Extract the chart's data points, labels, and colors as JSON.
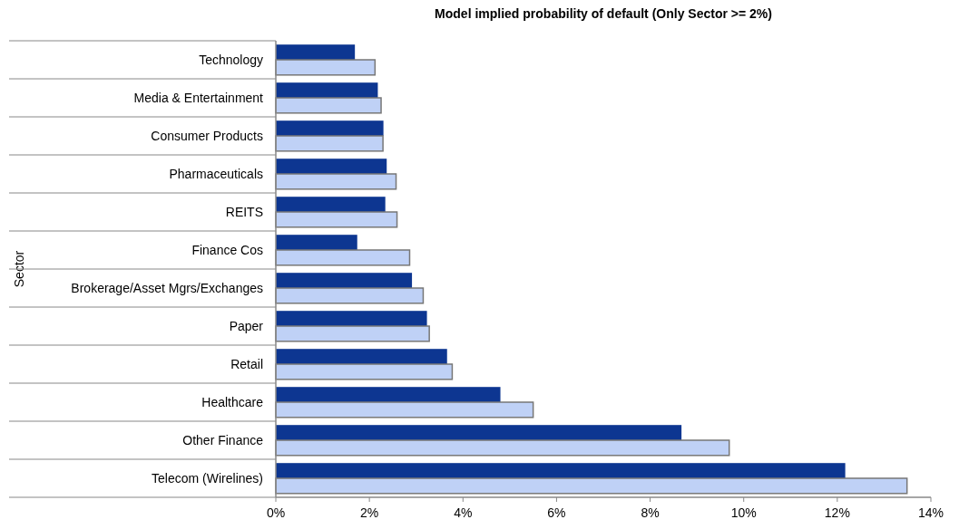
{
  "chart_data": {
    "type": "bar",
    "orientation": "horizontal",
    "title": "Model implied probability of default (Only Sector >= 2%)",
    "ylabel": "Sector",
    "categories": [
      "Technology",
      "Media & Entertainment",
      "Consumer Products",
      "Pharmaceuticals",
      "REITS",
      "Finance Cos",
      "Brokerage/Asset Mgrs/Exchanges",
      "Paper",
      "Retail",
      "Healthcare",
      "Other Finance",
      "Telecom (Wirelines)"
    ],
    "series": [
      {
        "color": "#0d3691",
        "values": [
          1.69,
          2.18,
          2.3,
          2.37,
          2.34,
          1.74,
          2.91,
          3.23,
          3.66,
          4.8,
          8.67,
          12.17
        ]
      },
      {
        "color": "#bfd1f6",
        "values": [
          2.12,
          2.25,
          2.29,
          2.57,
          2.59,
          2.86,
          3.15,
          3.28,
          3.77,
          5.5,
          9.69,
          13.49
        ]
      }
    ],
    "xlim": [
      0,
      14
    ],
    "xticks": [
      {
        "value": 0,
        "label": "0%"
      },
      {
        "value": 2,
        "label": "2%"
      },
      {
        "value": 4,
        "label": "4%"
      },
      {
        "value": 6,
        "label": "6%"
      },
      {
        "value": 8,
        "label": "8%"
      },
      {
        "value": 10,
        "label": "10%"
      },
      {
        "value": 12,
        "label": "12%"
      },
      {
        "value": 14,
        "label": "14%"
      }
    ],
    "grid": false
  }
}
